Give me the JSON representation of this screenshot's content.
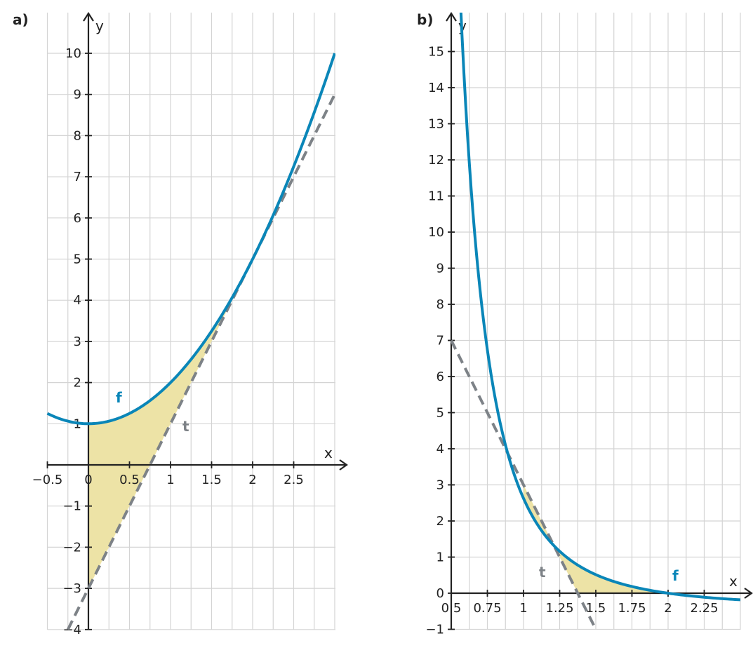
{
  "chart_data": [
    {
      "panel_label": "a)",
      "type": "line",
      "xlabel": "x",
      "ylabel": "y",
      "xlim": [
        -0.5,
        3.0
      ],
      "ylim": [
        -4,
        11
      ],
      "x_ticks": [
        -0.5,
        0,
        0.5,
        1,
        1.5,
        2,
        2.5
      ],
      "x_tick_labels": [
        "−0.5",
        "0",
        "0.5",
        "1",
        "1.5",
        "2",
        "2.5"
      ],
      "y_ticks": [
        -4,
        -3,
        -2,
        -1,
        1,
        2,
        3,
        4,
        5,
        6,
        7,
        8,
        9,
        10
      ],
      "y_tick_labels": [
        "−4",
        "−3",
        "−2",
        "−1",
        "1",
        "2",
        "3",
        "4",
        "5",
        "6",
        "7",
        "8",
        "9",
        "10"
      ],
      "grid": true,
      "series": [
        {
          "name": "f",
          "style": "solid",
          "color": "#0a86b8",
          "x": [
            -0.5,
            -0.25,
            0,
            0.25,
            0.5,
            0.75,
            1,
            1.25,
            1.5,
            1.75,
            2,
            2.25,
            2.5,
            2.75,
            3.0
          ],
          "y": [
            1.25,
            1.06,
            1.0,
            1.06,
            1.25,
            1.56,
            2.0,
            2.56,
            3.25,
            4.06,
            5.0,
            6.06,
            7.25,
            8.56,
            10.0
          ]
        },
        {
          "name": "t",
          "style": "dashed",
          "color": "#7d8287",
          "x": [
            -0.25,
            3.0
          ],
          "y": [
            -4.0,
            9.0
          ]
        }
      ],
      "shaded_region": {
        "between": [
          "f",
          "t"
        ],
        "x_from": 0,
        "x_to": 2,
        "color": "#ede3a6"
      }
    },
    {
      "panel_label": "b)",
      "type": "line",
      "xlabel": "x",
      "ylabel": "y",
      "xlim": [
        0.5,
        2.5
      ],
      "ylim": [
        -1,
        15
      ],
      "x_ticks": [
        0.5,
        0.75,
        1,
        1.25,
        1.5,
        1.75,
        2,
        2.25
      ],
      "x_tick_labels": [
        "0.5",
        "0.75",
        "1",
        "1.25",
        "1.5",
        "1.75",
        "2",
        "2.25"
      ],
      "y_ticks": [
        -1,
        0,
        1,
        2,
        3,
        4,
        5,
        6,
        7,
        8,
        9,
        10,
        11,
        12,
        13,
        14,
        15
      ],
      "y_tick_labels": [
        "−1",
        "0",
        "1",
        "2",
        "3",
        "4",
        "5",
        "6",
        "7",
        "8",
        "9",
        "10",
        "11",
        "12",
        "13",
        "14",
        "15"
      ],
      "grid": true,
      "series": [
        {
          "name": "f",
          "style": "solid",
          "color": "#0a86b8",
          "x": [
            0.5,
            0.6,
            0.7,
            0.8,
            0.9,
            1.0,
            1.1,
            1.2,
            1.3,
            1.4,
            1.5,
            1.6,
            1.7,
            1.8,
            1.9,
            2.0,
            2.1,
            2.2,
            2.3,
            2.4,
            2.5
          ],
          "y": [
            15.0,
            10.57,
            7.66,
            5.63,
            4.16,
            3.0,
            2.24,
            1.61,
            1.11,
            0.72,
            0.44,
            0.27,
            0.14,
            0.06,
            0.02,
            0.0,
            -0.08,
            -0.15,
            -0.21,
            -0.27,
            -0.32
          ]
        },
        {
          "name": "t",
          "style": "dashed",
          "color": "#7d8287",
          "x": [
            0.5,
            1.5
          ],
          "y": [
            7.0,
            -1.0
          ]
        }
      ],
      "shaded_region": {
        "between": [
          "f",
          "t"
        ],
        "x_from": 1,
        "x_to": 2,
        "color": "#ede3a6"
      }
    }
  ]
}
